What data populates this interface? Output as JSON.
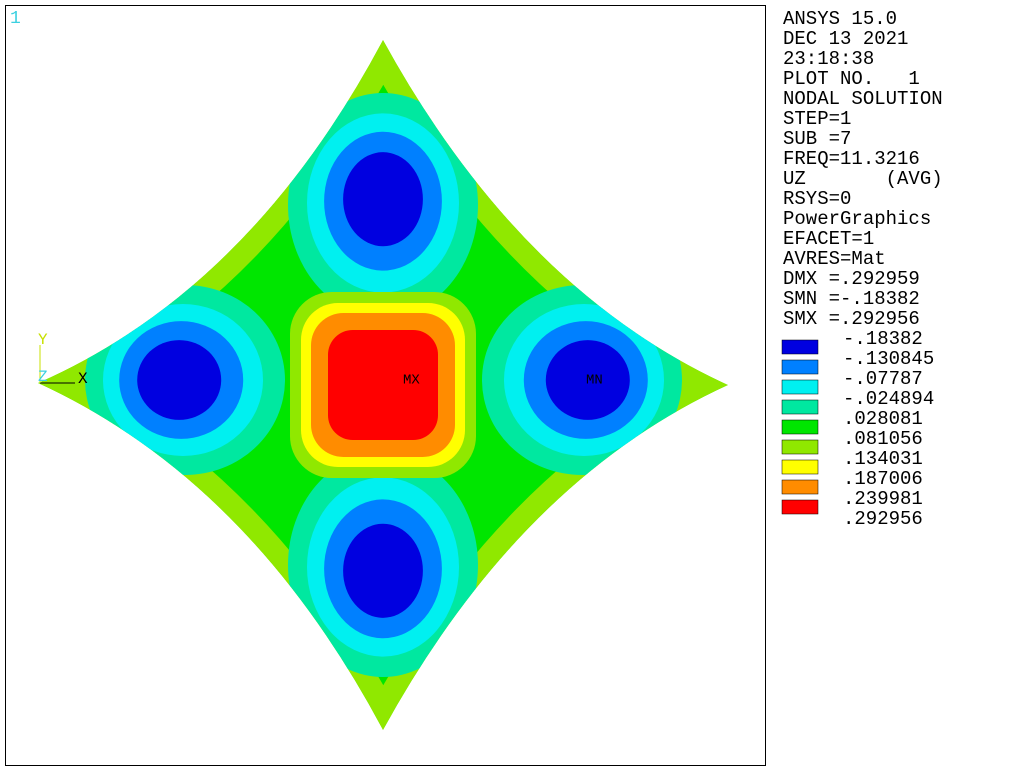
{
  "viewport": {
    "window_number": "1",
    "axis_triad": {
      "y": "Y",
      "z": "Z",
      "x": "X"
    },
    "markers": {
      "max": "MX",
      "min": "MN"
    }
  },
  "info": {
    "lines": [
      "ANSYS 15.0",
      "DEC 13 2021",
      "23:18:38",
      "PLOT NO.   1",
      "NODAL SOLUTION",
      "STEP=1",
      "SUB =7",
      "FREQ=11.3216",
      "UZ       (AVG)",
      "RSYS=0",
      "PowerGraphics",
      "EFACET=1",
      "AVRES=Mat",
      "DMX =.292959",
      "SMN =-.18382",
      "SMX =.292956"
    ]
  },
  "legend": {
    "labels": [
      "-.18382",
      "-.130845",
      "-.07787",
      "-.024894",
      ".028081",
      ".081056",
      ".134031",
      ".187006",
      ".239981",
      ".292956"
    ],
    "colors": [
      "#0000e0",
      "#0080ff",
      "#00f0f0",
      "#00e8a0",
      "#00e600",
      "#90e800",
      "#ffff00",
      "#ff8c00",
      "#ff0000"
    ]
  }
}
